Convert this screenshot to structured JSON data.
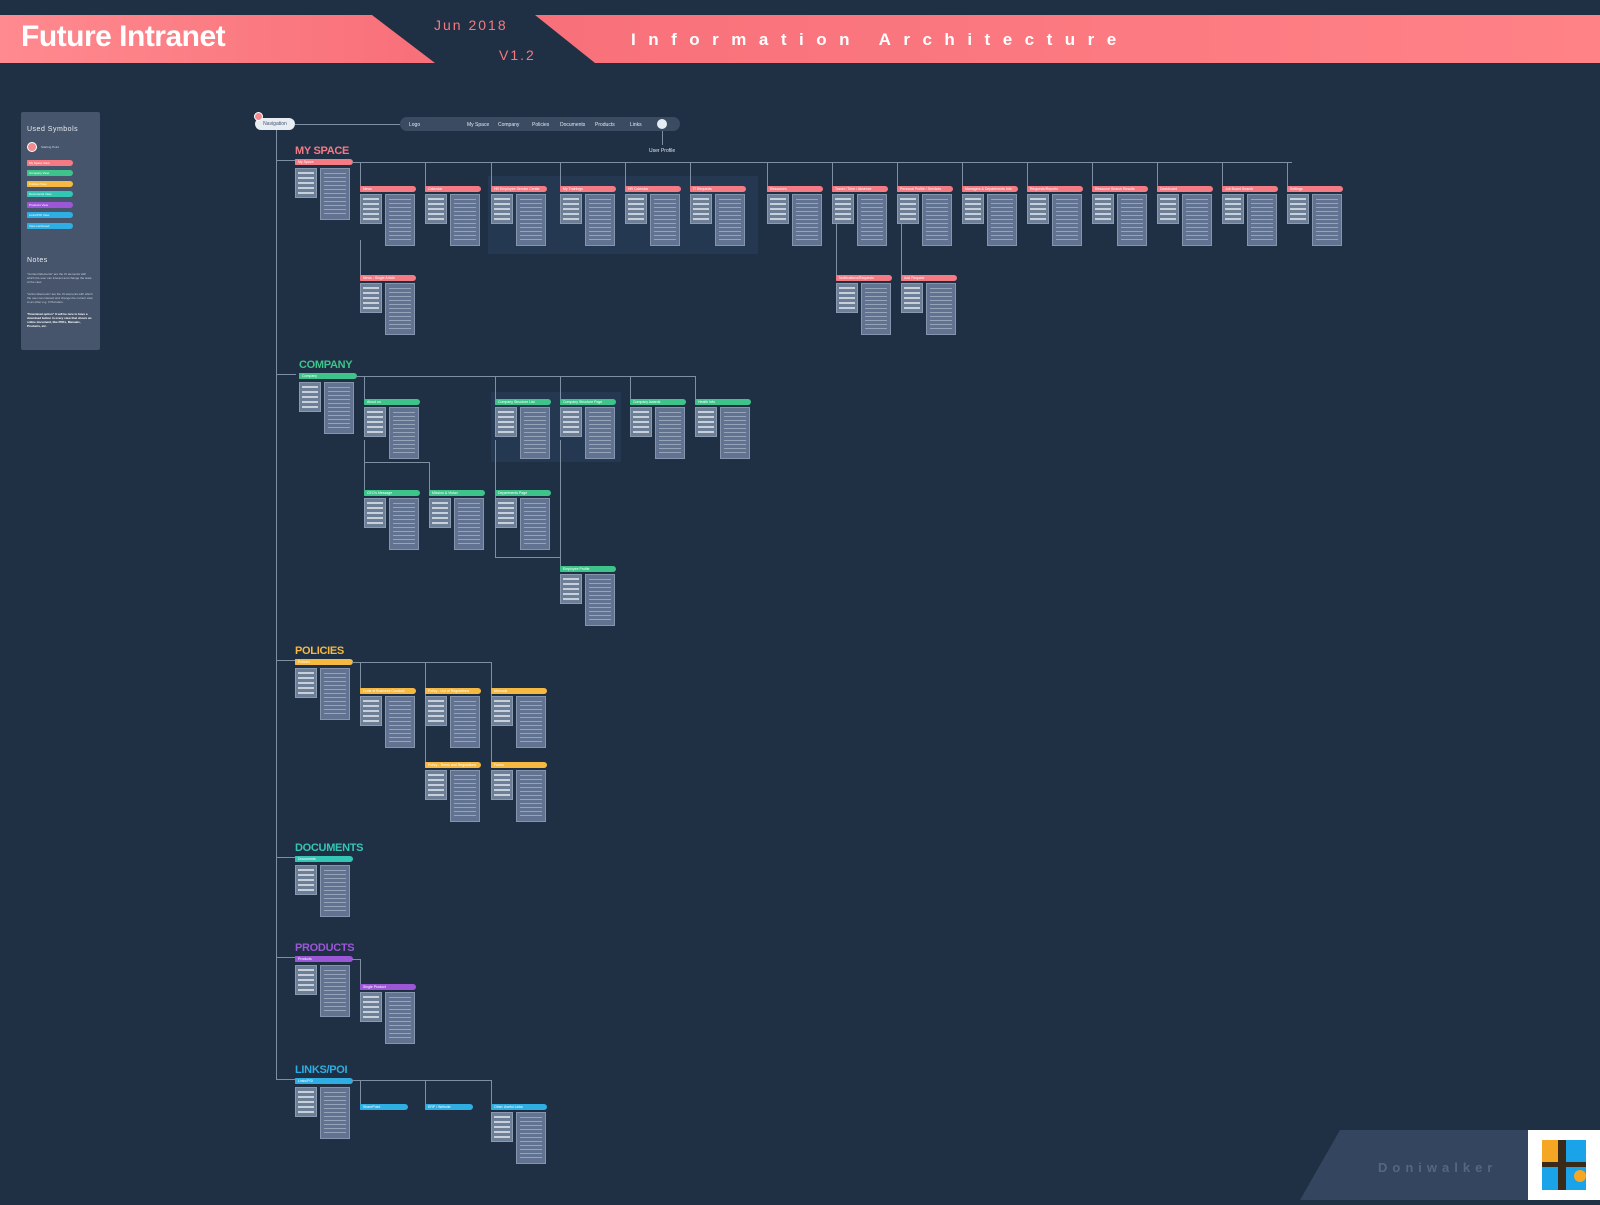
{
  "header": {
    "title": "Future Intranet",
    "date": "Jun 2018",
    "version": "V1.2",
    "subtitle": "Information Architecture"
  },
  "colors": {
    "background": "#1f2f44",
    "my_space": "#f47b84",
    "company": "#3ec48b",
    "policies": "#f5b942",
    "documents": "#34c6b5",
    "products": "#9b57d6",
    "links": "#2eaee3",
    "header": "#f8737c"
  },
  "legend": {
    "title": "Used Symbols",
    "starting_point": "Starting Point",
    "chips": [
      {
        "label": "My Space View",
        "color": "#f47b84"
      },
      {
        "label": "Company View",
        "color": "#3ec48b"
      },
      {
        "label": "Policies View",
        "color": "#f5b942"
      },
      {
        "label": "Documents View",
        "color": "#34c6b5"
      },
      {
        "label": "Products View",
        "color": "#9b57d6"
      },
      {
        "label": "Links/POI View",
        "color": "#2eaee3"
      },
      {
        "label": "View continued",
        "color": "#2eaee3"
      }
    ],
    "notes_title": "Notes",
    "notes": [
      "\"Content Elements\" are the UI elements with which the user can interact and change the state of the view.",
      "\"Action Elements\" are the UI elements with which the user can interact and change the current view to an other e.g. CTA button.",
      "\"Download option\" It will be nice to have a download button in every view that shows an online document, like PDFs, Manuals, Products, etc."
    ]
  },
  "navigation": {
    "label": "Navigation",
    "items": [
      "Logo",
      "My Space",
      "Company",
      "Policies",
      "Documents",
      "Products",
      "Links"
    ],
    "user_profile": "User Profile"
  },
  "sections": {
    "my_space": {
      "title": "MY SPACE",
      "root": "My Space"
    },
    "company": {
      "title": "COMPANY",
      "root": "Company"
    },
    "policies": {
      "title": "POLICIES",
      "root": "Policies"
    },
    "documents": {
      "title": "DOCUMENTS",
      "root": "Documents"
    },
    "products": {
      "title": "PRODUCTS",
      "root": "Products"
    },
    "links": {
      "title": "LINKS/POI",
      "root": "Links/POI"
    }
  },
  "my_space_pages": [
    "News",
    "Calendar",
    "HR Employee Service Center",
    "My Trainings",
    "HR Calendar",
    "IT Requests",
    "Resources",
    "Travel / Time / Absence",
    "Personal Profile / Services",
    "Managers & Departments Info",
    "Requests/Reports",
    "Resource Search Results",
    "Dashboard",
    "Job Board Search",
    "Settings",
    "News - Single Article",
    "Notifications/Requests",
    "Add Request"
  ],
  "company_pages": [
    "About us",
    "Company Structure List",
    "Company Structure Page",
    "Company Awards",
    "Health Info",
    "CEO's Message",
    "Mission & Vision",
    "Departments Page",
    "Employee Profile"
  ],
  "policies_pages": [
    "Code of Business Conduct",
    "Policy - List of Regulations",
    "Manuals",
    "Policy - Terms and Regulations",
    "Forms"
  ],
  "products_pages": [
    "Single Product"
  ],
  "links_pages": [
    "SharePoint",
    "ERP / Website",
    "Other Useful Links"
  ],
  "footer": {
    "brand": "Doniwalker"
  }
}
